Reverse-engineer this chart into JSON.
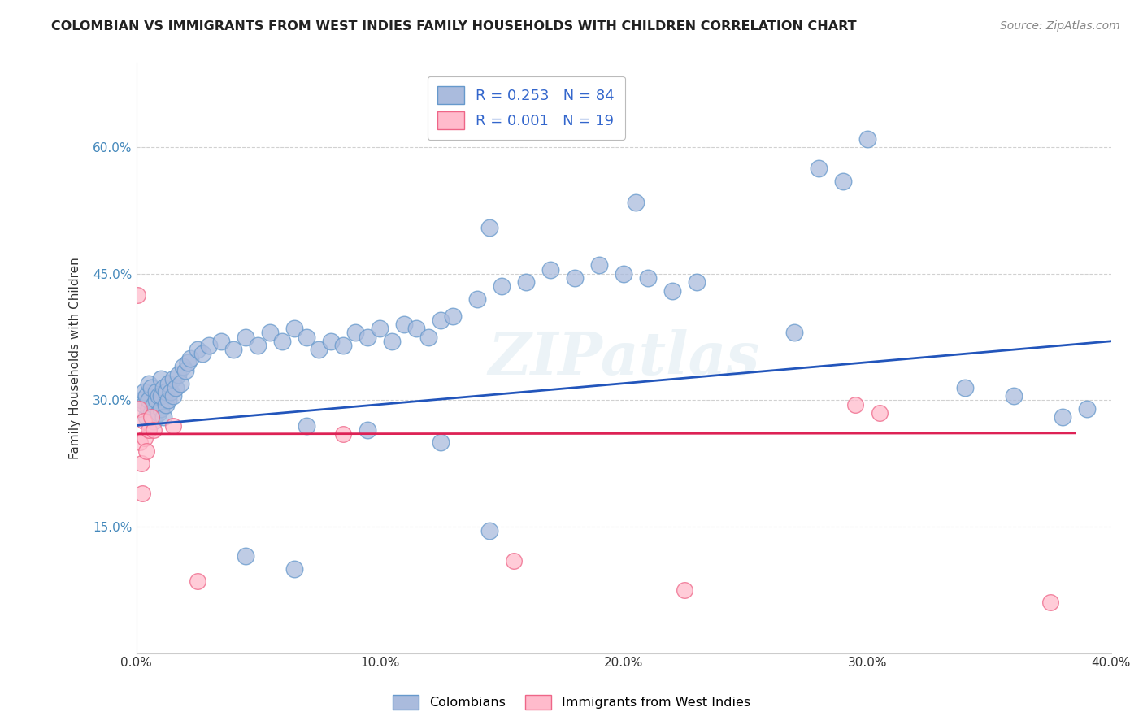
{
  "title": "COLOMBIAN VS IMMIGRANTS FROM WEST INDIES FAMILY HOUSEHOLDS WITH CHILDREN CORRELATION CHART",
  "source": "Source: ZipAtlas.com",
  "ylabel": "Family Households with Children",
  "xlim": [
    0.0,
    40.0
  ],
  "ylim": [
    0.0,
    70.0
  ],
  "xticks": [
    0.0,
    10.0,
    20.0,
    30.0,
    40.0
  ],
  "yticks": [
    0.0,
    15.0,
    30.0,
    45.0,
    60.0
  ],
  "xticklabels": [
    "0.0%",
    "10.0%",
    "20.0%",
    "30.0%",
    "40.0%"
  ],
  "yticklabels": [
    "",
    "15.0%",
    "30.0%",
    "45.0%",
    "60.0%"
  ],
  "grid_color": "#cccccc",
  "background_color": "#ffffff",
  "blue_color": "#6699cc",
  "blue_fill": "#aabbdd",
  "pink_color": "#ee6688",
  "pink_fill": "#ffbbcc",
  "R_blue": 0.253,
  "N_blue": 84,
  "R_pink": 0.001,
  "N_pink": 19,
  "legend_labels": [
    "Colombians",
    "Immigrants from West Indies"
  ],
  "watermark": "ZIPatlas",
  "blue_scatter_x": [
    0.2,
    0.3,
    0.3,
    0.4,
    0.4,
    0.5,
    0.5,
    0.5,
    0.6,
    0.6,
    0.7,
    0.7,
    0.8,
    0.8,
    0.9,
    0.9,
    1.0,
    1.0,
    1.0,
    1.1,
    1.1,
    1.2,
    1.2,
    1.3,
    1.3,
    1.4,
    1.5,
    1.5,
    1.6,
    1.7,
    1.8,
    1.9,
    2.0,
    2.1,
    2.2,
    2.5,
    2.7,
    3.0,
    3.5,
    4.0,
    4.5,
    5.0,
    5.5,
    6.0,
    6.5,
    7.0,
    7.5,
    8.0,
    8.5,
    9.0,
    9.5,
    10.0,
    10.5,
    11.0,
    11.5,
    12.0,
    12.5,
    13.0,
    14.0,
    15.0,
    16.0,
    17.0,
    18.0,
    19.0,
    20.0,
    21.0,
    22.0,
    23.0,
    14.5,
    20.5,
    27.0,
    28.0,
    29.0,
    30.0,
    34.0,
    36.0,
    38.0,
    39.0,
    7.0,
    9.5,
    12.5,
    14.5,
    4.5,
    6.5
  ],
  "blue_scatter_y": [
    30.0,
    29.5,
    31.0,
    28.0,
    30.5,
    29.0,
    30.0,
    32.0,
    28.5,
    31.5,
    27.5,
    29.5,
    30.0,
    31.0,
    28.5,
    30.5,
    29.0,
    30.5,
    32.5,
    28.0,
    31.5,
    29.5,
    31.0,
    30.0,
    32.0,
    31.0,
    30.5,
    32.5,
    31.5,
    33.0,
    32.0,
    34.0,
    33.5,
    34.5,
    35.0,
    36.0,
    35.5,
    36.5,
    37.0,
    36.0,
    37.5,
    36.5,
    38.0,
    37.0,
    38.5,
    37.5,
    36.0,
    37.0,
    36.5,
    38.0,
    37.5,
    38.5,
    37.0,
    39.0,
    38.5,
    37.5,
    39.5,
    40.0,
    42.0,
    43.5,
    44.0,
    45.5,
    44.5,
    46.0,
    45.0,
    44.5,
    43.0,
    44.0,
    50.5,
    53.5,
    38.0,
    57.5,
    56.0,
    61.0,
    31.5,
    30.5,
    28.0,
    29.0,
    27.0,
    26.5,
    25.0,
    14.5,
    11.5,
    10.0
  ],
  "pink_scatter_x": [
    0.05,
    0.1,
    0.15,
    0.2,
    0.25,
    0.3,
    0.35,
    0.4,
    0.5,
    0.6,
    0.7,
    1.5,
    2.5,
    8.5,
    15.5,
    22.5,
    29.5,
    30.5,
    37.5
  ],
  "pink_scatter_y": [
    42.5,
    29.0,
    25.0,
    22.5,
    19.0,
    27.5,
    25.5,
    24.0,
    26.5,
    28.0,
    26.5,
    27.0,
    8.5,
    26.0,
    11.0,
    7.5,
    29.5,
    28.5,
    6.0
  ],
  "blue_line_x0": 0.0,
  "blue_line_x1": 40.0,
  "blue_line_y0": 27.0,
  "blue_line_y1": 37.0,
  "pink_line_x0": 0.0,
  "pink_line_x1": 38.5,
  "pink_line_y0": 26.0,
  "pink_line_y1": 26.1
}
